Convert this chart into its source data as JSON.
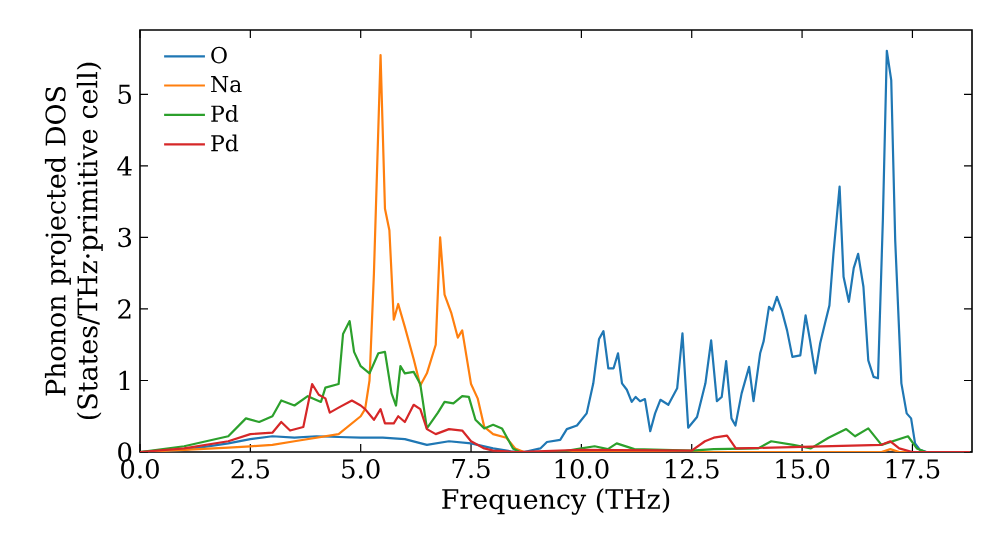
{
  "chart_data": {
    "type": "line",
    "xlabel": "Frequency (THz)",
    "ylabel": "Phonon projected DOS (States/THz·primitive cell)",
    "xlim": [
      0,
      18.85
    ],
    "ylim": [
      0,
      5.9
    ],
    "xticks": [
      {
        "value": 0,
        "label": "0.0"
      },
      2.5,
      {
        "value": 5,
        "label": "5.0"
      },
      7.5,
      {
        "value": 10,
        "label": "10.0"
      },
      12.5,
      {
        "value": 15,
        "label": "15.0"
      },
      17.5
    ],
    "yticks": [
      0,
      1,
      2,
      3,
      4,
      5
    ],
    "legend": "top left",
    "series": [
      {
        "name": "O",
        "color": "#1f77b4",
        "x": [
          0,
          1,
          2,
          2.5,
          3,
          3.5,
          4,
          4.5,
          5,
          5.5,
          6,
          6.5,
          7,
          7.5,
          8,
          8.4,
          8.7,
          9.07,
          9.22,
          9.52,
          9.67,
          9.9,
          10.12,
          10.27,
          10.4,
          10.5,
          10.61,
          10.73,
          10.83,
          10.92,
          11.03,
          11.14,
          11.23,
          11.33,
          11.44,
          11.56,
          11.67,
          11.79,
          11.97,
          12.17,
          12.29,
          12.42,
          12.62,
          12.81,
          12.94,
          13.07,
          13.18,
          13.28,
          13.4,
          13.49,
          13.63,
          13.8,
          13.9,
          14.05,
          14.13,
          14.25,
          14.33,
          14.43,
          14.54,
          14.66,
          14.78,
          14.96,
          15.08,
          15.18,
          15.3,
          15.41,
          15.52,
          15.62,
          15.71,
          15.85,
          15.94,
          16.06,
          16.17,
          16.27,
          16.39,
          16.5,
          16.62,
          16.72,
          16.83,
          16.92,
          17.02,
          17.11,
          17.25,
          17.37,
          17.47,
          17.56,
          17.67,
          17.82,
          18.8
        ],
        "values": [
          0,
          0.03,
          0.12,
          0.18,
          0.22,
          0.2,
          0.22,
          0.21,
          0.2,
          0.2,
          0.18,
          0.1,
          0.15,
          0.12,
          0.05,
          0.01,
          0,
          0.05,
          0.14,
          0.17,
          0.32,
          0.37,
          0.54,
          0.96,
          1.58,
          1.69,
          1.17,
          1.17,
          1.38,
          0.96,
          0.87,
          0.7,
          0.77,
          0.71,
          0.74,
          0.29,
          0.54,
          0.73,
          0.66,
          0.89,
          1.66,
          0.34,
          0.49,
          0.96,
          1.56,
          0.71,
          0.77,
          1.27,
          0.47,
          0.37,
          0.82,
          1.19,
          0.71,
          1.38,
          1.55,
          2.03,
          1.98,
          2.17,
          1.98,
          1.7,
          1.33,
          1.35,
          1.91,
          1.56,
          1.1,
          1.52,
          1.8,
          2.05,
          2.77,
          3.71,
          2.45,
          2.1,
          2.57,
          2.77,
          2.31,
          1.28,
          1.05,
          1.03,
          3.24,
          5.61,
          5.2,
          2.96,
          0.96,
          0.54,
          0.47,
          0.12,
          0.03,
          0,
          0
        ]
      },
      {
        "name": "Na",
        "color": "#ff7f0e",
        "x": [
          0,
          1,
          2,
          2.5,
          3,
          3.5,
          4,
          4.5,
          5,
          5.1,
          5.2,
          5.3,
          5.45,
          5.55,
          5.65,
          5.75,
          5.85,
          6,
          6.2,
          6.35,
          6.5,
          6.7,
          6.8,
          6.9,
          7.05,
          7.2,
          7.3,
          7.5,
          7.65,
          7.8,
          8,
          8.3,
          8.5,
          8.7,
          16.8,
          17,
          17.2,
          18.8
        ],
        "values": [
          0,
          0.03,
          0.06,
          0.08,
          0.1,
          0.15,
          0.2,
          0.25,
          0.5,
          0.6,
          1,
          2.5,
          5.55,
          3.4,
          3.1,
          1.85,
          2.07,
          1.75,
          1.3,
          0.93,
          1.1,
          1.5,
          3,
          2.2,
          1.95,
          1.6,
          1.7,
          0.95,
          0.75,
          0.35,
          0.25,
          0.2,
          0.05,
          0,
          0,
          0.04,
          0,
          0
        ]
      },
      {
        "name": "Pd",
        "color": "#2ca02c",
        "x": [
          0,
          1,
          2,
          2.4,
          2.7,
          3,
          3.2,
          3.5,
          3.8,
          4.1,
          4.2,
          4.5,
          4.6,
          4.75,
          4.85,
          5,
          5.2,
          5.4,
          5.55,
          5.7,
          5.8,
          5.9,
          6,
          6.2,
          6.35,
          6.5,
          6.75,
          6.9,
          7.1,
          7.3,
          7.45,
          7.6,
          7.8,
          8,
          8.2,
          8.45,
          8.6,
          9.5,
          10,
          10.3,
          10.6,
          10.8,
          11.2,
          12.5,
          13,
          14,
          14.3,
          14.8,
          15.2,
          15.6,
          16,
          16.2,
          16.5,
          16.8,
          17.2,
          17.4,
          17.6,
          17.8,
          18.8
        ],
        "values": [
          0,
          0.08,
          0.22,
          0.47,
          0.42,
          0.5,
          0.72,
          0.65,
          0.78,
          0.7,
          0.9,
          0.95,
          1.65,
          1.83,
          1.4,
          1.2,
          1.1,
          1.38,
          1.4,
          0.82,
          0.65,
          1.2,
          1.1,
          1.12,
          0.95,
          0.33,
          0.55,
          0.7,
          0.68,
          0.78,
          0.77,
          0.45,
          0.33,
          0.38,
          0.33,
          0.05,
          0,
          0,
          0.05,
          0.08,
          0.04,
          0.12,
          0.04,
          0.02,
          0.04,
          0.05,
          0.15,
          0.1,
          0.05,
          0.2,
          0.32,
          0.22,
          0.33,
          0.1,
          0.18,
          0.22,
          0.05,
          0,
          0
        ]
      },
      {
        "name": "Pd",
        "color": "#d62728",
        "x": [
          0,
          1,
          2,
          2.5,
          3,
          3.2,
          3.4,
          3.7,
          3.9,
          4.05,
          4.2,
          4.3,
          4.5,
          4.8,
          5,
          5.1,
          5.3,
          5.45,
          5.55,
          5.75,
          5.85,
          6,
          6.2,
          6.35,
          6.5,
          6.7,
          7,
          7.3,
          7.5,
          7.8,
          8,
          8.5,
          10,
          12.5,
          12.8,
          13,
          13.3,
          13.5,
          16.8,
          17,
          17.2,
          17.5,
          18.8
        ],
        "values": [
          0,
          0.05,
          0.15,
          0.25,
          0.27,
          0.42,
          0.3,
          0.35,
          0.95,
          0.8,
          0.75,
          0.55,
          0.62,
          0.72,
          0.65,
          0.6,
          0.45,
          0.6,
          0.4,
          0.4,
          0.5,
          0.42,
          0.66,
          0.6,
          0.32,
          0.25,
          0.32,
          0.3,
          0.15,
          0.05,
          0.02,
          0,
          0.03,
          0.02,
          0.15,
          0.2,
          0.23,
          0.05,
          0.1,
          0.15,
          0.05,
          0,
          0
        ]
      }
    ]
  }
}
